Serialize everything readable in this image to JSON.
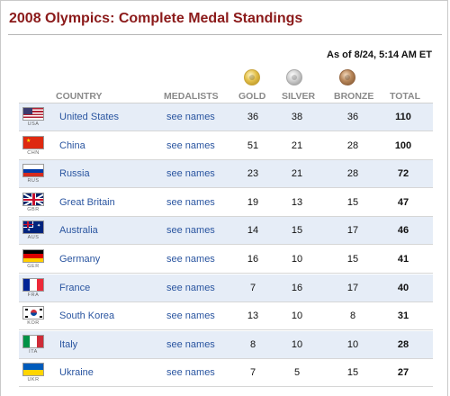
{
  "title": "2008 Olympics: Complete Medal Standings",
  "as_of": "As of 8/24, 5:14 AM ET",
  "headers": {
    "country": "COUNTRY",
    "medalists": "MEDALISTS",
    "gold": "GOLD",
    "silver": "SILVER",
    "bronze": "BRONZE",
    "total": "TOTAL"
  },
  "medal_icons": {
    "gold": "gold-medal-icon",
    "silver": "silver-medal-icon",
    "bronze": "bronze-medal-icon"
  },
  "colors": {
    "title": "#8b1a1a",
    "link": "#2a55a0",
    "row_alt": "#e6edf7"
  },
  "rows": [
    {
      "code": "USA",
      "country": "United States",
      "medalists": "see names",
      "gold": "36",
      "silver": "38",
      "bronze": "36",
      "total": "110"
    },
    {
      "code": "CHN",
      "country": "China",
      "medalists": "see names",
      "gold": "51",
      "silver": "21",
      "bronze": "28",
      "total": "100"
    },
    {
      "code": "RUS",
      "country": "Russia",
      "medalists": "see names",
      "gold": "23",
      "silver": "21",
      "bronze": "28",
      "total": "72"
    },
    {
      "code": "GBR",
      "country": "Great Britain",
      "medalists": "see names",
      "gold": "19",
      "silver": "13",
      "bronze": "15",
      "total": "47"
    },
    {
      "code": "AUS",
      "country": "Australia",
      "medalists": "see names",
      "gold": "14",
      "silver": "15",
      "bronze": "17",
      "total": "46"
    },
    {
      "code": "GER",
      "country": "Germany",
      "medalists": "see names",
      "gold": "16",
      "silver": "10",
      "bronze": "15",
      "total": "41"
    },
    {
      "code": "FRA",
      "country": "France",
      "medalists": "see names",
      "gold": "7",
      "silver": "16",
      "bronze": "17",
      "total": "40"
    },
    {
      "code": "KOR",
      "country": "South Korea",
      "medalists": "see names",
      "gold": "13",
      "silver": "10",
      "bronze": "8",
      "total": "31"
    },
    {
      "code": "ITA",
      "country": "Italy",
      "medalists": "see names",
      "gold": "8",
      "silver": "10",
      "bronze": "10",
      "total": "28"
    },
    {
      "code": "UKR",
      "country": "Ukraine",
      "medalists": "see names",
      "gold": "7",
      "silver": "5",
      "bronze": "15",
      "total": "27"
    }
  ]
}
